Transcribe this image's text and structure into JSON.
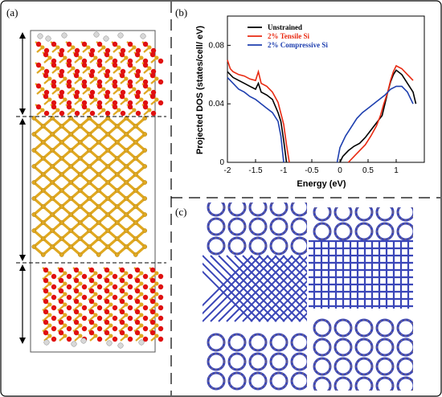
{
  "panels": {
    "a": {
      "label": "(a)"
    },
    "b": {
      "label": "(b)"
    },
    "c": {
      "label": "(c)"
    }
  },
  "colors": {
    "silicon": "#e0a820",
    "oxygen": "#e01010",
    "hydrogen": "#d8d8d8",
    "density": "#3a46b8",
    "density_edge": "#b8873a",
    "unstrained": "#000000",
    "tensile": "#e82a12",
    "compressive": "#1e3faf"
  },
  "chart_data": {
    "type": "line",
    "xlabel": "Energy (eV)",
    "ylabel": "Projected DOS (states/cell/ eV)",
    "xlim": [
      -2,
      1.5
    ],
    "ylim": [
      0,
      0.1
    ],
    "xticks": [
      -2,
      -1.5,
      -1,
      -0.5,
      0,
      0.5,
      1
    ],
    "xtick_labels": [
      "-2",
      "-1.5",
      "-1",
      "-0.5",
      "0",
      "0.5",
      "1"
    ],
    "yticks": [
      0,
      0.04,
      0.08
    ],
    "ytick_labels": [
      "0",
      "0.04",
      "0.08"
    ],
    "legend_position": "top-right",
    "series": [
      {
        "name": "Unstrained",
        "color": "#000000",
        "valence": [
          [
            -2.0,
            0.062
          ],
          [
            -1.9,
            0.058
          ],
          [
            -1.8,
            0.056
          ],
          [
            -1.7,
            0.054
          ],
          [
            -1.6,
            0.052
          ],
          [
            -1.5,
            0.05
          ],
          [
            -1.45,
            0.054
          ],
          [
            -1.4,
            0.048
          ],
          [
            -1.3,
            0.046
          ],
          [
            -1.2,
            0.043
          ],
          [
            -1.1,
            0.034
          ],
          [
            -1.05,
            0.028
          ],
          [
            -1.0,
            0.015
          ],
          [
            -0.95,
            0.0
          ]
        ],
        "conduction": [
          [
            0.0,
            0.0
          ],
          [
            0.05,
            0.004
          ],
          [
            0.15,
            0.008
          ],
          [
            0.25,
            0.011
          ],
          [
            0.35,
            0.013
          ],
          [
            0.45,
            0.017
          ],
          [
            0.55,
            0.022
          ],
          [
            0.65,
            0.027
          ],
          [
            0.75,
            0.032
          ],
          [
            0.8,
            0.04
          ],
          [
            0.85,
            0.048
          ],
          [
            0.9,
            0.055
          ],
          [
            0.95,
            0.06
          ],
          [
            1.0,
            0.063
          ],
          [
            1.1,
            0.06
          ],
          [
            1.2,
            0.054
          ],
          [
            1.3,
            0.048
          ],
          [
            1.35,
            0.04
          ]
        ]
      },
      {
        "name": "2% Tensile Si",
        "color": "#e82a12",
        "valence": [
          [
            -2.0,
            0.07
          ],
          [
            -1.95,
            0.064
          ],
          [
            -1.9,
            0.062
          ],
          [
            -1.8,
            0.06
          ],
          [
            -1.7,
            0.059
          ],
          [
            -1.6,
            0.057
          ],
          [
            -1.5,
            0.056
          ],
          [
            -1.45,
            0.062
          ],
          [
            -1.4,
            0.054
          ],
          [
            -1.3,
            0.052
          ],
          [
            -1.2,
            0.048
          ],
          [
            -1.1,
            0.041
          ],
          [
            -1.0,
            0.026
          ],
          [
            -0.95,
            0.012
          ],
          [
            -0.9,
            0.0
          ]
        ],
        "conduction": [
          [
            0.15,
            0.0
          ],
          [
            0.25,
            0.004
          ],
          [
            0.35,
            0.008
          ],
          [
            0.45,
            0.012
          ],
          [
            0.55,
            0.018
          ],
          [
            0.65,
            0.025
          ],
          [
            0.72,
            0.032
          ],
          [
            0.78,
            0.04
          ],
          [
            0.85,
            0.048
          ],
          [
            0.9,
            0.056
          ],
          [
            0.95,
            0.062
          ],
          [
            1.0,
            0.066
          ],
          [
            1.1,
            0.064
          ],
          [
            1.2,
            0.06
          ],
          [
            1.3,
            0.056
          ]
        ]
      },
      {
        "name": "2% Compressive Si",
        "color": "#1e3faf",
        "valence": [
          [
            -2.0,
            0.058
          ],
          [
            -1.9,
            0.054
          ],
          [
            -1.8,
            0.05
          ],
          [
            -1.7,
            0.048
          ],
          [
            -1.6,
            0.045
          ],
          [
            -1.5,
            0.043
          ],
          [
            -1.4,
            0.04
          ],
          [
            -1.3,
            0.037
          ],
          [
            -1.2,
            0.034
          ],
          [
            -1.1,
            0.028
          ],
          [
            -1.05,
            0.018
          ],
          [
            -1.0,
            0.0
          ]
        ],
        "conduction": [
          [
            -0.05,
            0.0
          ],
          [
            0.0,
            0.01
          ],
          [
            0.1,
            0.018
          ],
          [
            0.2,
            0.024
          ],
          [
            0.3,
            0.03
          ],
          [
            0.4,
            0.034
          ],
          [
            0.5,
            0.037
          ],
          [
            0.6,
            0.04
          ],
          [
            0.7,
            0.043
          ],
          [
            0.8,
            0.046
          ],
          [
            0.9,
            0.05
          ],
          [
            1.0,
            0.052
          ],
          [
            1.1,
            0.052
          ],
          [
            1.2,
            0.048
          ],
          [
            1.3,
            0.04
          ]
        ]
      }
    ]
  }
}
